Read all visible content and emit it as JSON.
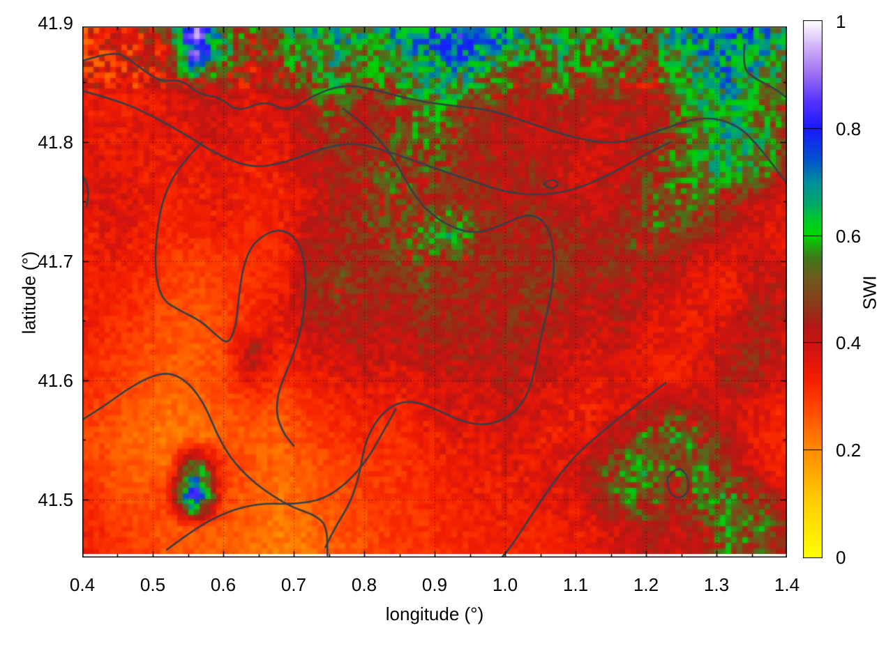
{
  "chart_data": {
    "type": "heatmap",
    "title": "",
    "xlabel": "longitude (°)",
    "ylabel": "latitude (°)",
    "colorbar_label": "SWI",
    "xlim": [
      0.4,
      1.4
    ],
    "ylim": [
      41.4514,
      41.897
    ],
    "zlim": [
      0,
      1
    ],
    "grid_on": true,
    "x_ticks": {
      "values": [
        0.4,
        0.5,
        0.6,
        0.7,
        0.8,
        0.9,
        1.0,
        1.1,
        1.2,
        1.3,
        1.4
      ],
      "labels": [
        "0.4",
        "0.5",
        "0.6",
        "0.7",
        "0.8",
        "0.9",
        "1.0",
        "1.1",
        "1.2",
        "1.3",
        "1.4"
      ],
      "minor": [
        0.45,
        0.55,
        0.65,
        0.75,
        0.85,
        0.95,
        1.05,
        1.15,
        1.25,
        1.35
      ]
    },
    "y_ticks": {
      "values": [
        41.9,
        41.8,
        41.7,
        41.6,
        41.5
      ],
      "labels": [
        "41.9",
        "41.8",
        "41.7",
        "41.6",
        "41.5"
      ],
      "grid_values": [
        41.8,
        41.7,
        41.6,
        41.5
      ],
      "minor": [
        41.85,
        41.75,
        41.65,
        41.55
      ]
    },
    "colorbar_ticks": {
      "values": [
        1,
        0.8,
        0.6,
        0.4,
        0.2,
        0
      ],
      "labels": [
        "1",
        "0.8",
        "0.6",
        "0.4",
        "0.2",
        "0"
      ]
    },
    "colormap": [
      [
        0.0,
        "#ffff00"
      ],
      [
        0.1,
        "#ffd000"
      ],
      [
        0.2,
        "#ff8c00"
      ],
      [
        0.28,
        "#ff4500"
      ],
      [
        0.33,
        "#f52000"
      ],
      [
        0.38,
        "#d81510"
      ],
      [
        0.43,
        "#b21815"
      ],
      [
        0.47,
        "#8c3a18"
      ],
      [
        0.52,
        "#6f5a1d"
      ],
      [
        0.56,
        "#3f7a1a"
      ],
      [
        0.6,
        "#00d800"
      ],
      [
        0.63,
        "#00c82d"
      ],
      [
        0.66,
        "#00a86a"
      ],
      [
        0.7,
        "#008f9e"
      ],
      [
        0.74,
        "#0055cc"
      ],
      [
        0.8,
        "#1a1aff"
      ],
      [
        0.85,
        "#5533ff"
      ],
      [
        0.9,
        "#9b6ff2"
      ],
      [
        0.95,
        "#cfaef8"
      ],
      [
        1.0,
        "#ffffff"
      ]
    ],
    "grid": {
      "lon_start": 0.4,
      "lon_step": 0.04,
      "ncols": 26,
      "lat_start": 41.9,
      "lat_step": -0.025,
      "nrows": 19,
      "values": [
        [
          0.35,
          0.36,
          0.38,
          0.45,
          0.92,
          0.6,
          0.5,
          0.55,
          0.62,
          0.65,
          0.62,
          0.68,
          0.7,
          0.75,
          0.78,
          0.72,
          0.6,
          0.62,
          0.55,
          0.6,
          0.55,
          0.65,
          0.7,
          0.72,
          0.68,
          0.62
        ],
        [
          0.33,
          0.35,
          0.36,
          0.4,
          0.85,
          0.58,
          0.42,
          0.5,
          0.58,
          0.62,
          0.55,
          0.6,
          0.66,
          0.72,
          0.7,
          0.62,
          0.55,
          0.58,
          0.5,
          0.55,
          0.48,
          0.6,
          0.66,
          0.7,
          0.64,
          0.58
        ],
        [
          0.34,
          0.35,
          0.35,
          0.37,
          0.45,
          0.42,
          0.38,
          0.42,
          0.5,
          0.55,
          0.48,
          0.52,
          0.6,
          0.62,
          0.55,
          0.5,
          0.45,
          0.52,
          0.45,
          0.5,
          0.42,
          0.55,
          0.6,
          0.66,
          0.6,
          0.52
        ],
        [
          0.35,
          0.34,
          0.36,
          0.36,
          0.38,
          0.4,
          0.36,
          0.38,
          0.44,
          0.5,
          0.42,
          0.46,
          0.55,
          0.52,
          0.45,
          0.42,
          0.4,
          0.44,
          0.4,
          0.42,
          0.4,
          0.48,
          0.58,
          0.62,
          0.55,
          0.45
        ],
        [
          0.36,
          0.35,
          0.36,
          0.35,
          0.37,
          0.38,
          0.35,
          0.36,
          0.42,
          0.46,
          0.44,
          0.48,
          0.52,
          0.48,
          0.44,
          0.42,
          0.42,
          0.42,
          0.4,
          0.4,
          0.44,
          0.5,
          0.6,
          0.64,
          0.6,
          0.5
        ],
        [
          0.36,
          0.37,
          0.36,
          0.34,
          0.35,
          0.36,
          0.34,
          0.35,
          0.4,
          0.44,
          0.46,
          0.5,
          0.48,
          0.46,
          0.44,
          0.42,
          0.44,
          0.4,
          0.38,
          0.4,
          0.46,
          0.52,
          0.58,
          0.6,
          0.55,
          0.42
        ],
        [
          0.35,
          0.38,
          0.36,
          0.33,
          0.34,
          0.35,
          0.33,
          0.34,
          0.38,
          0.42,
          0.46,
          0.48,
          0.46,
          0.45,
          0.44,
          0.42,
          0.44,
          0.42,
          0.4,
          0.42,
          0.48,
          0.52,
          0.5,
          0.46,
          0.4,
          0.36
        ],
        [
          0.34,
          0.36,
          0.35,
          0.32,
          0.33,
          0.34,
          0.32,
          0.34,
          0.4,
          0.44,
          0.46,
          0.47,
          0.5,
          0.6,
          0.46,
          0.45,
          0.44,
          0.45,
          0.42,
          0.44,
          0.5,
          0.48,
          0.44,
          0.4,
          0.38,
          0.35
        ],
        [
          0.33,
          0.35,
          0.33,
          0.3,
          0.28,
          0.3,
          0.3,
          0.32,
          0.42,
          0.46,
          0.44,
          0.46,
          0.48,
          0.46,
          0.45,
          0.44,
          0.45,
          0.46,
          0.44,
          0.46,
          0.44,
          0.42,
          0.38,
          0.36,
          0.4,
          0.38
        ],
        [
          0.34,
          0.33,
          0.31,
          0.28,
          0.27,
          0.29,
          0.31,
          0.34,
          0.44,
          0.47,
          0.45,
          0.44,
          0.46,
          0.45,
          0.44,
          0.45,
          0.46,
          0.44,
          0.42,
          0.44,
          0.4,
          0.38,
          0.36,
          0.34,
          0.42,
          0.4
        ],
        [
          0.35,
          0.32,
          0.3,
          0.27,
          0.26,
          0.28,
          0.32,
          0.36,
          0.42,
          0.44,
          0.43,
          0.42,
          0.44,
          0.44,
          0.43,
          0.44,
          0.44,
          0.42,
          0.4,
          0.42,
          0.38,
          0.36,
          0.35,
          0.38,
          0.44,
          0.4
        ],
        [
          0.33,
          0.3,
          0.28,
          0.26,
          0.25,
          0.27,
          0.44,
          0.34,
          0.38,
          0.4,
          0.42,
          0.4,
          0.42,
          0.43,
          0.42,
          0.43,
          0.42,
          0.4,
          0.38,
          0.4,
          0.36,
          0.34,
          0.36,
          0.42,
          0.46,
          0.38
        ],
        [
          0.32,
          0.3,
          0.27,
          0.25,
          0.26,
          0.28,
          0.36,
          0.3,
          0.34,
          0.36,
          0.38,
          0.36,
          0.38,
          0.4,
          0.4,
          0.42,
          0.4,
          0.38,
          0.36,
          0.38,
          0.34,
          0.33,
          0.38,
          0.44,
          0.42,
          0.36
        ],
        [
          0.3,
          0.28,
          0.25,
          0.23,
          0.24,
          0.26,
          0.28,
          0.26,
          0.3,
          0.32,
          0.34,
          0.33,
          0.35,
          0.38,
          0.38,
          0.4,
          0.38,
          0.36,
          0.34,
          0.36,
          0.4,
          0.45,
          0.42,
          0.38,
          0.36,
          0.34
        ],
        [
          0.28,
          0.26,
          0.24,
          0.22,
          0.23,
          0.25,
          0.26,
          0.25,
          0.28,
          0.3,
          0.32,
          0.31,
          0.33,
          0.36,
          0.36,
          0.38,
          0.36,
          0.35,
          0.36,
          0.45,
          0.52,
          0.55,
          0.48,
          0.42,
          0.34,
          0.32
        ],
        [
          0.3,
          0.27,
          0.25,
          0.24,
          0.6,
          0.3,
          0.26,
          0.24,
          0.26,
          0.28,
          0.3,
          0.3,
          0.32,
          0.34,
          0.35,
          0.36,
          0.35,
          0.36,
          0.42,
          0.52,
          0.56,
          0.5,
          0.55,
          0.45,
          0.36,
          0.33
        ],
        [
          0.32,
          0.28,
          0.26,
          0.3,
          0.85,
          0.28,
          0.25,
          0.23,
          0.25,
          0.27,
          0.29,
          0.3,
          0.31,
          0.33,
          0.34,
          0.35,
          0.34,
          0.36,
          0.4,
          0.5,
          0.54,
          0.46,
          0.52,
          0.55,
          0.48,
          0.38
        ],
        [
          0.34,
          0.3,
          0.28,
          0.26,
          0.27,
          0.26,
          0.24,
          0.22,
          0.24,
          0.26,
          0.28,
          0.3,
          0.3,
          0.32,
          0.33,
          0.34,
          0.33,
          0.34,
          0.36,
          0.4,
          0.44,
          0.4,
          0.46,
          0.55,
          0.52,
          0.45
        ],
        [
          0.33,
          0.31,
          0.29,
          0.26,
          0.25,
          0.24,
          0.23,
          0.21,
          0.23,
          0.25,
          0.27,
          0.29,
          0.3,
          0.31,
          0.32,
          0.33,
          0.32,
          0.33,
          0.35,
          0.38,
          0.42,
          0.38,
          0.44,
          0.52,
          0.48,
          0.42
        ]
      ]
    },
    "contour_color": "#3a3e46",
    "contours": [
      [
        [
          0.4,
          41.868
        ],
        [
          0.445,
          41.877
        ],
        [
          0.47,
          41.868
        ],
        [
          0.51,
          41.85
        ],
        [
          0.54,
          41.853
        ],
        [
          0.565,
          41.84
        ],
        [
          0.595,
          41.838
        ],
        [
          0.62,
          41.825
        ],
        [
          0.66,
          41.835
        ],
        [
          0.69,
          41.825
        ],
        [
          0.73,
          41.84
        ],
        [
          0.77,
          41.848
        ],
        [
          0.81,
          41.845
        ],
        [
          0.87,
          41.835
        ],
        [
          0.93,
          41.83
        ],
        [
          0.98,
          41.827
        ],
        [
          1.04,
          41.815
        ],
        [
          1.1,
          41.803
        ],
        [
          1.16,
          41.798
        ],
        [
          1.22,
          41.81
        ],
        [
          1.28,
          41.822
        ],
        [
          1.33,
          41.815
        ],
        [
          1.365,
          41.793
        ],
        [
          1.4,
          41.765
        ]
      ],
      [
        [
          0.4,
          41.843
        ],
        [
          0.45,
          41.835
        ],
        [
          0.5,
          41.822
        ],
        [
          0.55,
          41.805
        ],
        [
          0.59,
          41.79
        ],
        [
          0.64,
          41.778
        ],
        [
          0.69,
          41.783
        ],
        [
          0.74,
          41.795
        ],
        [
          0.79,
          41.8
        ],
        [
          0.845,
          41.79
        ],
        [
          0.9,
          41.778
        ],
        [
          0.95,
          41.768
        ],
        [
          1.0,
          41.758
        ],
        [
          1.05,
          41.755
        ],
        [
          1.1,
          41.76
        ],
        [
          1.15,
          41.773
        ],
        [
          1.2,
          41.79
        ],
        [
          1.235,
          41.8
        ]
      ],
      [
        [
          0.57,
          41.8
        ],
        [
          0.54,
          41.782
        ],
        [
          0.515,
          41.755
        ],
        [
          0.505,
          41.723
        ],
        [
          0.503,
          41.693
        ],
        [
          0.512,
          41.668
        ],
        [
          0.54,
          41.658
        ],
        [
          0.568,
          41.65
        ],
        [
          0.59,
          41.638
        ],
        [
          0.607,
          41.63
        ],
        [
          0.618,
          41.645
        ],
        [
          0.622,
          41.67
        ],
        [
          0.628,
          41.695
        ],
        [
          0.64,
          41.713
        ],
        [
          0.66,
          41.723
        ],
        [
          0.682,
          41.727
        ],
        [
          0.703,
          41.72
        ],
        [
          0.715,
          41.703
        ],
        [
          0.718,
          41.678
        ],
        [
          0.713,
          41.65
        ],
        [
          0.703,
          41.627
        ],
        [
          0.69,
          41.608
        ],
        [
          0.678,
          41.59
        ],
        [
          0.675,
          41.572
        ],
        [
          0.685,
          41.556
        ],
        [
          0.7,
          41.545
        ]
      ],
      [
        [
          0.4,
          41.567
        ],
        [
          0.43,
          41.578
        ],
        [
          0.462,
          41.592
        ],
        [
          0.495,
          41.603
        ],
        [
          0.525,
          41.607
        ],
        [
          0.553,
          41.597
        ],
        [
          0.575,
          41.578
        ],
        [
          0.59,
          41.556
        ],
        [
          0.61,
          41.535
        ],
        [
          0.638,
          41.517
        ],
        [
          0.67,
          41.503
        ],
        [
          0.7,
          41.493
        ],
        [
          0.73,
          41.487
        ],
        [
          0.747,
          41.478
        ],
        [
          0.748,
          41.453
        ]
      ],
      [
        [
          0.77,
          41.828
        ],
        [
          0.8,
          41.815
        ],
        [
          0.828,
          41.798
        ],
        [
          0.85,
          41.778
        ],
        [
          0.868,
          41.758
        ],
        [
          0.893,
          41.74
        ],
        [
          0.925,
          41.728
        ],
        [
          0.96,
          41.723
        ],
        [
          0.995,
          41.73
        ],
        [
          1.03,
          41.74
        ],
        [
          1.055,
          41.735
        ],
        [
          1.068,
          41.716
        ],
        [
          1.07,
          41.69
        ],
        [
          1.062,
          41.662
        ],
        [
          1.05,
          41.635
        ],
        [
          1.042,
          41.608
        ],
        [
          1.03,
          41.585
        ],
        [
          1.008,
          41.57
        ],
        [
          0.975,
          41.562
        ],
        [
          0.94,
          41.565
        ],
        [
          0.905,
          41.575
        ],
        [
          0.87,
          41.583
        ],
        [
          0.84,
          41.58
        ],
        [
          0.815,
          41.565
        ],
        [
          0.8,
          41.545
        ],
        [
          0.793,
          41.52
        ],
        [
          0.78,
          41.497
        ],
        [
          0.76,
          41.478
        ],
        [
          0.745,
          41.46
        ]
      ],
      [
        [
          1.228,
          41.598
        ],
        [
          1.192,
          41.582
        ],
        [
          1.148,
          41.562
        ],
        [
          1.108,
          41.542
        ],
        [
          1.078,
          41.522
        ],
        [
          1.052,
          41.5
        ],
        [
          1.03,
          41.48
        ],
        [
          1.01,
          41.462
        ],
        [
          0.996,
          41.452
        ]
      ],
      [
        [
          0.52,
          41.458
        ],
        [
          0.558,
          41.475
        ],
        [
          0.605,
          41.49
        ],
        [
          0.652,
          41.497
        ],
        [
          0.7,
          41.496
        ],
        [
          0.742,
          41.5
        ],
        [
          0.778,
          41.515
        ],
        [
          0.806,
          41.535
        ],
        [
          0.826,
          41.556
        ],
        [
          0.845,
          41.576
        ]
      ],
      [
        [
          1.34,
          41.882
        ],
        [
          1.336,
          41.862
        ],
        [
          1.358,
          41.852
        ],
        [
          1.382,
          41.845
        ],
        [
          1.398,
          41.838
        ]
      ],
      [
        [
          1.055,
          41.765
        ],
        [
          1.065,
          41.77
        ],
        [
          1.078,
          41.765
        ],
        [
          1.065,
          41.76
        ],
        [
          1.055,
          41.765
        ]
      ],
      [
        [
          1.23,
          41.518
        ],
        [
          1.243,
          41.528
        ],
        [
          1.258,
          41.522
        ],
        [
          1.262,
          41.508
        ],
        [
          1.248,
          41.5
        ],
        [
          1.233,
          41.505
        ],
        [
          1.23,
          41.518
        ]
      ],
      [
        [
          0.4,
          41.772
        ],
        [
          0.41,
          41.762
        ],
        [
          0.406,
          41.746
        ]
      ]
    ]
  }
}
